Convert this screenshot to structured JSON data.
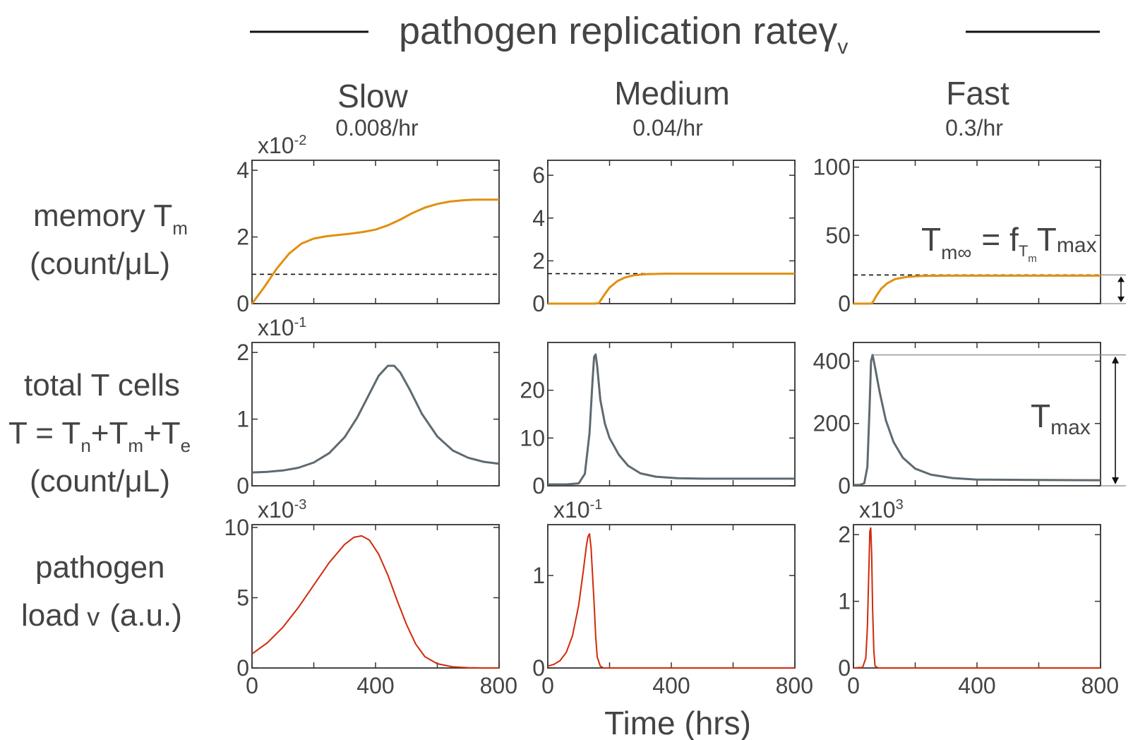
{
  "header": {
    "title_main": "pathogen replication rate",
    "title_symbol": "γ",
    "title_sub": "v"
  },
  "columns": [
    {
      "name": "Slow",
      "rate": "0.008/hr"
    },
    {
      "name": "Medium",
      "rate": "0.04/hr"
    },
    {
      "name": "Fast",
      "rate": "0.3/hr"
    }
  ],
  "rows": [
    {
      "line1": "memory T",
      "line1_sub": "m",
      "line2": "(count/μL)"
    },
    {
      "line1": "total T cells",
      "line2_parts": [
        "T = T",
        "n",
        "+T",
        "m",
        "+T",
        "e"
      ],
      "line3": "(count/μL)"
    },
    {
      "line1": "pathogen",
      "line2": "load",
      "line2_sym": "v",
      "line2_tail": "(a.u.)"
    }
  ],
  "xaxis": {
    "title": "Time (hrs)",
    "ticks": [
      "0",
      "400",
      "800"
    ],
    "range": [
      0,
      800
    ]
  },
  "annotations": {
    "tminf_main": "T",
    "tminf_sub": "m∞",
    "tminf_eq": "= f",
    "tminf_f_sub": "T",
    "tminf_f_subsub": "m",
    "tminf_T": "T",
    "tminf_T_sub": "max",
    "tmax_main": "T",
    "tmax_sub": "max"
  },
  "colors": {
    "memory": "#E0900F",
    "total": "#5E6A70",
    "pathogen": "#D02A0A",
    "axis": "#333333",
    "text": "#444444"
  },
  "chart_data": [
    {
      "type": "line",
      "row": "memory",
      "column": "Slow",
      "multiplier": "x10",
      "multiplier_exp": "-2",
      "yticks": [
        "0",
        "2",
        "4"
      ],
      "ylim": [
        0,
        4.3
      ],
      "xlim": [
        0,
        800
      ],
      "x": [
        0,
        40,
        80,
        120,
        160,
        200,
        240,
        280,
        320,
        360,
        400,
        440,
        480,
        520,
        560,
        600,
        640,
        680,
        720,
        760,
        800
      ],
      "y": [
        0,
        0.5,
        1.05,
        1.5,
        1.8,
        1.95,
        2.02,
        2.06,
        2.1,
        2.15,
        2.22,
        2.35,
        2.52,
        2.72,
        2.88,
        2.99,
        3.06,
        3.1,
        3.12,
        3.12,
        3.12
      ],
      "dashed_level": 0.88
    },
    {
      "type": "line",
      "row": "memory",
      "column": "Medium",
      "multiplier": "",
      "multiplier_exp": "",
      "yticks": [
        "0",
        "2",
        "4",
        "6"
      ],
      "ylim": [
        0,
        6.7
      ],
      "xlim": [
        0,
        800
      ],
      "x": [
        0,
        60,
        120,
        150,
        165,
        180,
        200,
        225,
        250,
        280,
        320,
        380,
        450,
        550,
        650,
        800
      ],
      "y": [
        0,
        0,
        0,
        0,
        0.02,
        0.35,
        0.75,
        1.05,
        1.22,
        1.33,
        1.38,
        1.4,
        1.4,
        1.4,
        1.4,
        1.4
      ],
      "dashed_level": 1.4
    },
    {
      "type": "line",
      "row": "memory",
      "column": "Fast",
      "multiplier": "",
      "multiplier_exp": "",
      "yticks": [
        "0",
        "50",
        "100"
      ],
      "ylim": [
        0,
        105
      ],
      "xlim": [
        0,
        800
      ],
      "x": [
        0,
        30,
        55,
        60,
        65,
        75,
        90,
        110,
        135,
        170,
        220,
        300,
        400,
        800
      ],
      "y": [
        0,
        0,
        0,
        0.2,
        2,
        6,
        11,
        15,
        18,
        19.5,
        20.3,
        20.5,
        20.5,
        20.5
      ],
      "dashed_level": 21
    },
    {
      "type": "line",
      "row": "total",
      "column": "Slow",
      "multiplier": "x10",
      "multiplier_exp": "-1",
      "yticks": [
        "0",
        "1",
        "2"
      ],
      "ylim": [
        0,
        2.15
      ],
      "xlim": [
        0,
        800
      ],
      "x": [
        0,
        50,
        100,
        150,
        200,
        250,
        300,
        340,
        380,
        410,
        440,
        460,
        480,
        510,
        550,
        600,
        650,
        700,
        750,
        800
      ],
      "y": [
        0.2,
        0.21,
        0.23,
        0.27,
        0.35,
        0.49,
        0.73,
        1.02,
        1.38,
        1.65,
        1.8,
        1.8,
        1.7,
        1.45,
        1.08,
        0.74,
        0.53,
        0.42,
        0.36,
        0.33
      ]
    },
    {
      "type": "line",
      "row": "total",
      "column": "Medium",
      "multiplier": "",
      "multiplier_exp": "",
      "yticks": [
        "0",
        "10",
        "20"
      ],
      "ylim": [
        0,
        30
      ],
      "xlim": [
        0,
        800
      ],
      "x": [
        0,
        60,
        100,
        120,
        135,
        145,
        150,
        155,
        160,
        170,
        185,
        200,
        230,
        260,
        300,
        350,
        420,
        500,
        650,
        800
      ],
      "y": [
        0.3,
        0.3,
        0.5,
        2.5,
        11,
        22,
        27,
        27.5,
        25,
        18,
        13,
        10,
        6.5,
        4.2,
        2.6,
        1.9,
        1.6,
        1.5,
        1.5,
        1.5
      ]
    },
    {
      "type": "line",
      "row": "total",
      "column": "Fast",
      "multiplier": "",
      "multiplier_exp": "",
      "yticks": [
        "0",
        "200",
        "400"
      ],
      "ylim": [
        0,
        460
      ],
      "xlim": [
        0,
        800
      ],
      "x": [
        0,
        20,
        35,
        45,
        52,
        57,
        62,
        70,
        85,
        105,
        130,
        160,
        200,
        250,
        320,
        400,
        550,
        800
      ],
      "y": [
        3,
        3,
        8,
        60,
        250,
        400,
        420,
        380,
        300,
        210,
        140,
        90,
        55,
        36,
        25,
        20,
        19,
        18
      ],
      "tmax_level": 420
    },
    {
      "type": "line",
      "row": "pathogen",
      "column": "Slow",
      "multiplier": "x10",
      "multiplier_exp": "-3",
      "yticks": [
        "0",
        "5",
        "10"
      ],
      "ylim": [
        0,
        10.2
      ],
      "xlim": [
        0,
        800
      ],
      "x": [
        0,
        50,
        100,
        150,
        200,
        250,
        300,
        330,
        355,
        380,
        410,
        440,
        470,
        500,
        530,
        560,
        600,
        650,
        700,
        750,
        800
      ],
      "y": [
        1,
        1.8,
        2.9,
        4.3,
        5.9,
        7.5,
        8.8,
        9.3,
        9.4,
        9.1,
        8.1,
        6.6,
        4.8,
        3.1,
        1.7,
        0.8,
        0.3,
        0.08,
        0.02,
        0,
        0
      ]
    },
    {
      "type": "line",
      "row": "pathogen",
      "column": "Medium",
      "multiplier": "x10",
      "multiplier_exp": "-1",
      "yticks": [
        "0",
        "1"
      ],
      "ylim": [
        0,
        1.55
      ],
      "xlim": [
        0,
        800
      ],
      "x": [
        0,
        20,
        40,
        60,
        80,
        100,
        115,
        125,
        130,
        135,
        140,
        150,
        155,
        160,
        170,
        180,
        200,
        400,
        800
      ],
      "y": [
        0.02,
        0.04,
        0.08,
        0.17,
        0.35,
        0.68,
        1.05,
        1.32,
        1.42,
        1.45,
        1.3,
        0.7,
        0.35,
        0.12,
        0.02,
        0,
        0,
        0,
        0
      ]
    },
    {
      "type": "line",
      "row": "pathogen",
      "column": "Fast",
      "multiplier": "x10",
      "multiplier_exp": "3",
      "yticks": [
        "0",
        "1",
        "2"
      ],
      "ylim": [
        0,
        2.15
      ],
      "xlim": [
        0,
        800
      ],
      "x": [
        0,
        30,
        40,
        45,
        50,
        53,
        56,
        59,
        62,
        66,
        70,
        80,
        800
      ],
      "y": [
        0,
        0.01,
        0.15,
        0.6,
        1.5,
        2.05,
        2.1,
        1.7,
        0.9,
        0.25,
        0.03,
        0,
        0
      ]
    }
  ]
}
